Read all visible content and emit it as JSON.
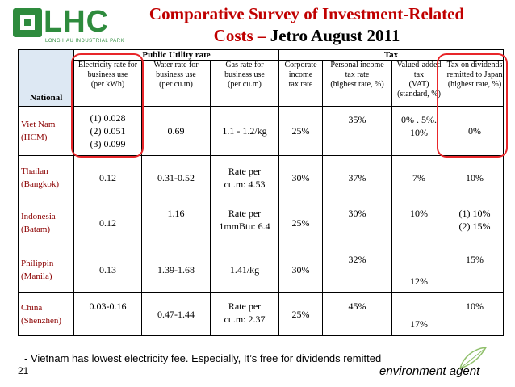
{
  "logo": {
    "text": "LHC",
    "subtitle": "LONG HAU INDUSTRIAL PARK"
  },
  "title": {
    "line1": "Comparative Survey of Investment-Related",
    "line2_red": "Costs –",
    "line2_black": "Jetro August 2011"
  },
  "table": {
    "national_label": "National",
    "group_utility": "Public Utility rate",
    "group_tax": "Tax",
    "columns": [
      [
        "Electricity rate for",
        "business use",
        "(per kWh)"
      ],
      [
        "Water rate for",
        "business use",
        "(per cu.m)"
      ],
      [
        "Gas rate for",
        "business use",
        "(per cu.m)"
      ],
      [
        "Corporate",
        "income",
        "tax rate"
      ],
      [
        "Personal income",
        "tax rate",
        "(highest rate, %)"
      ],
      [
        "Valued-added",
        "tax",
        "(VAT)",
        "(standard, %)"
      ],
      [
        "Tax on dividends",
        "remitted to Japan",
        "(highest rate, %)"
      ]
    ],
    "rows": [
      {
        "country": [
          "Viet Nam",
          "(HCM)"
        ],
        "electricity": [
          "(1) 0.028",
          "(2) 0.051",
          "(3) 0.099"
        ],
        "water": "0.69",
        "gas": [
          "1.1 - 1.2/kg"
        ],
        "corporate": "25%",
        "personal": "35%",
        "vat": [
          "0% . 5%.",
          "10%"
        ],
        "dividends": [
          "0%"
        ]
      },
      {
        "country": [
          "Thailan",
          "(Bangkok)"
        ],
        "electricity": [
          "0.12"
        ],
        "water": "0.31-0.52",
        "gas": [
          "Rate per",
          "cu.m: 4.53"
        ],
        "corporate": "30%",
        "personal": "37%",
        "vat": [
          "7%"
        ],
        "dividends": [
          "10%"
        ]
      },
      {
        "country": [
          "Indonesia",
          "(Batam)"
        ],
        "electricity": [
          "0.12"
        ],
        "water": "1.16",
        "gas": [
          "Rate per",
          "1mmBtu: 6.4"
        ],
        "corporate": "25%",
        "personal": "30%",
        "vat": [
          "10%"
        ],
        "dividends": [
          "(1) 10%",
          "(2) 15%"
        ]
      },
      {
        "country": [
          "Philippin",
          "(Manila)"
        ],
        "electricity": [
          "0.13"
        ],
        "water": "1.39-1.68",
        "gas": [
          "1.41/kg"
        ],
        "corporate": "30%",
        "personal": "32%",
        "vat": [
          "12%"
        ],
        "dividends": [
          "15%"
        ]
      },
      {
        "country": [
          "China",
          "(Shenzhen)"
        ],
        "electricity": [
          "0.03-0.16"
        ],
        "water": "0.47-1.44",
        "gas": [
          "Rate per",
          "cu.m: 2.37"
        ],
        "corporate": "25%",
        "personal": "45%",
        "vat": [
          "17%"
        ],
        "dividends": [
          "10%"
        ]
      }
    ]
  },
  "note": "- Vietnam has lowest electricity fee. Especially, It’s free for dividends remitted",
  "page_number": "21",
  "footer_brand": "environment agent",
  "colors": {
    "logo_green": "#2e8b3d",
    "title_red": "#c00000",
    "country_text": "#8b0000",
    "highlight_circle": "#e8262a",
    "national_header_bg": "#dde8f3"
  }
}
